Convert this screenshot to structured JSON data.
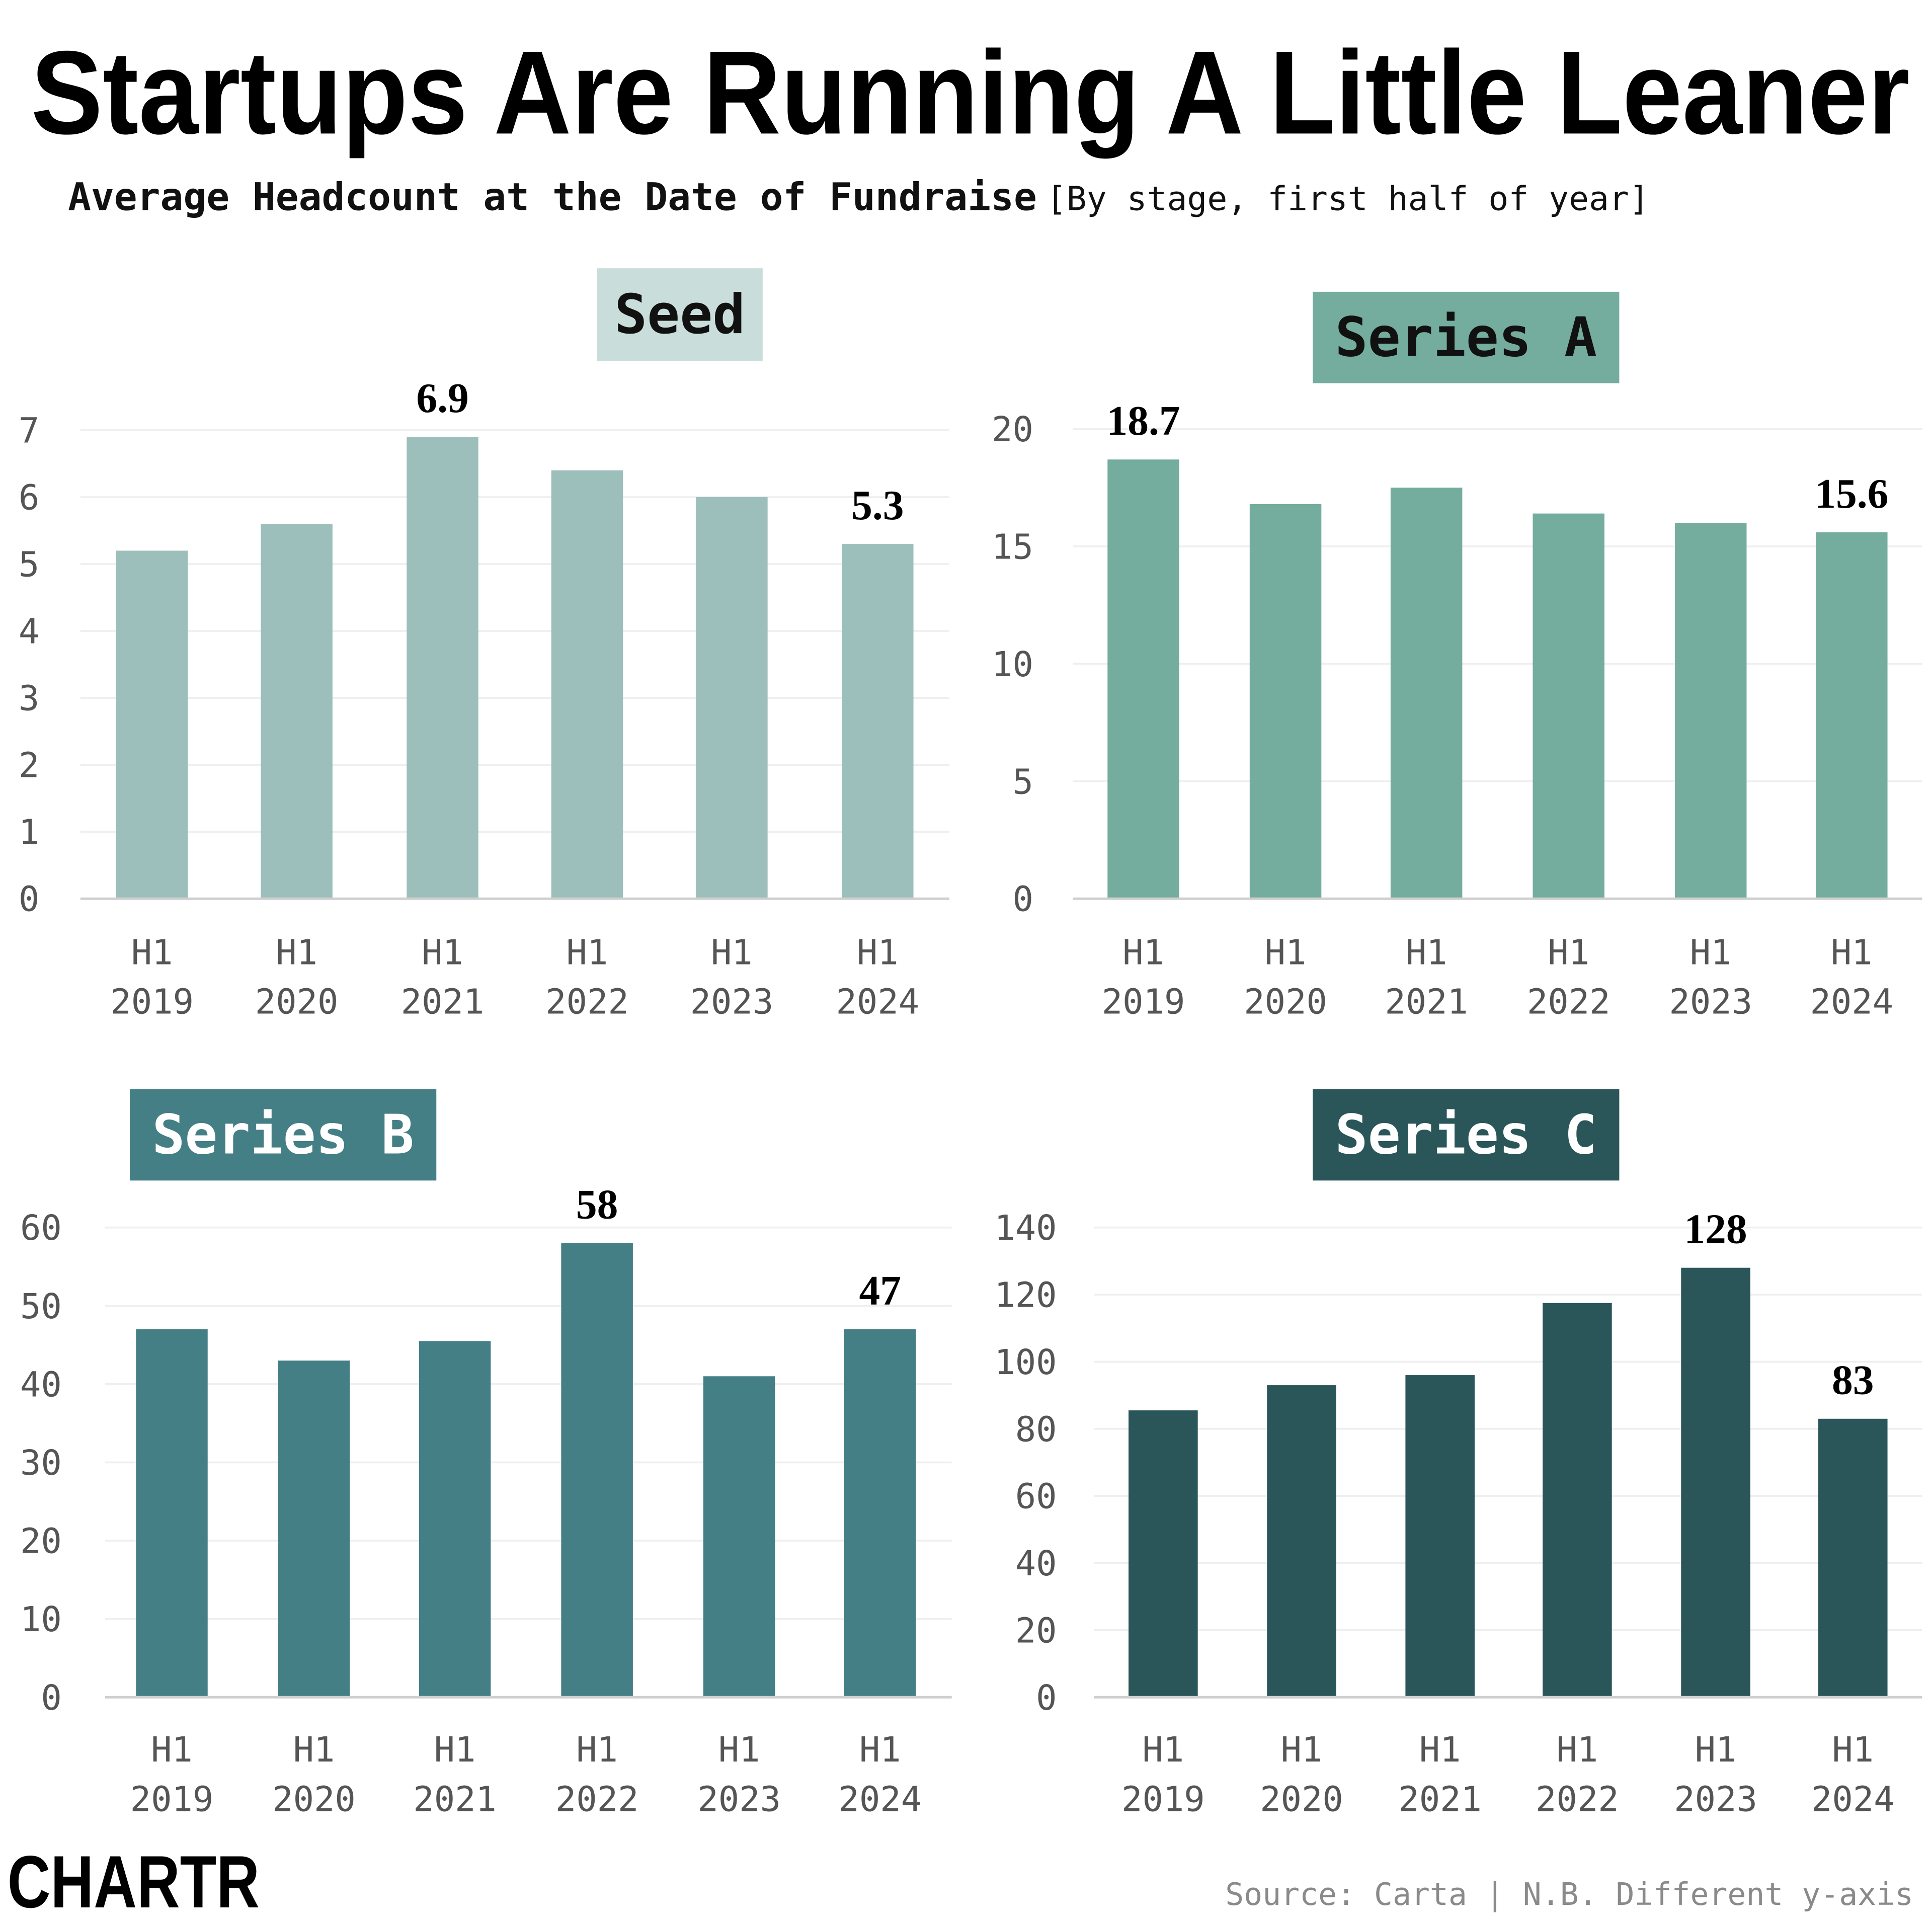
{
  "header": {
    "title": "Startups Are Running A Little Leaner",
    "subtitle_bold": "Average Headcount at the Date of Fundraise",
    "subtitle_note": "[By stage, first half of year]"
  },
  "footer": {
    "logo": "CHARTR",
    "source": "Source: Carta | N.B. Different y-axis"
  },
  "chart_data": [
    {
      "type": "bar",
      "title": "Seed",
      "categories": [
        "H1 2019",
        "H1 2020",
        "H1 2021",
        "H1 2022",
        "H1 2023",
        "H1 2024"
      ],
      "values": [
        5.2,
        5.6,
        6.9,
        6.4,
        6.0,
        5.3
      ],
      "data_labels": {
        "H1 2021": "6.9",
        "H1 2024": "5.3"
      },
      "ylim": [
        0,
        7
      ],
      "yticks": [
        0,
        1,
        2,
        3,
        4,
        5,
        6,
        7
      ],
      "grid": true,
      "bar_color": "#9dbfbb",
      "title_bg": "#c9dedb",
      "title_color": "#111111"
    },
    {
      "type": "bar",
      "title": "Series A",
      "categories": [
        "H1 2019",
        "H1 2020",
        "H1 2021",
        "H1 2022",
        "H1 2023",
        "H1 2024"
      ],
      "values": [
        18.7,
        16.8,
        17.5,
        16.4,
        16.0,
        15.6
      ],
      "data_labels": {
        "H1 2019": "18.7",
        "H1 2024": "15.6"
      },
      "ylim": [
        0,
        20
      ],
      "yticks": [
        0,
        5,
        10,
        15,
        20
      ],
      "grid": true,
      "bar_color": "#74ad9e",
      "title_bg": "#74ad9e",
      "title_color": "#111111"
    },
    {
      "type": "bar",
      "title": "Series B",
      "categories": [
        "H1 2019",
        "H1 2020",
        "H1 2021",
        "H1 2022",
        "H1 2023",
        "H1 2024"
      ],
      "values": [
        47,
        43,
        45.5,
        58,
        41,
        47
      ],
      "data_labels": {
        "H1 2022": "58",
        "H1 2024": "47"
      },
      "ylim": [
        0,
        60
      ],
      "yticks": [
        0,
        10,
        20,
        30,
        40,
        50,
        60
      ],
      "grid": true,
      "bar_color": "#447f86",
      "title_bg": "#447f86",
      "title_color": "#ffffff"
    },
    {
      "type": "bar",
      "title": "Series C",
      "categories": [
        "H1 2019",
        "H1 2020",
        "H1 2021",
        "H1 2022",
        "H1 2023",
        "H1 2024"
      ],
      "values": [
        85.5,
        93,
        96,
        117.5,
        128,
        83
      ],
      "data_labels": {
        "H1 2023": "128",
        "H1 2024": "83"
      },
      "ylim": [
        0,
        140
      ],
      "yticks": [
        0,
        20,
        40,
        60,
        80,
        100,
        120,
        140
      ],
      "grid": true,
      "bar_color": "#2b5659",
      "title_bg": "#2b5659",
      "title_color": "#ffffff"
    }
  ]
}
